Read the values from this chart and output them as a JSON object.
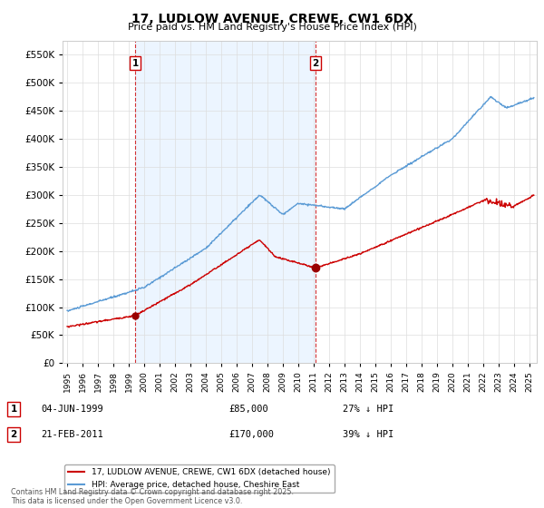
{
  "title": "17, LUDLOW AVENUE, CREWE, CW1 6DX",
  "subtitle": "Price paid vs. HM Land Registry's House Price Index (HPI)",
  "ytick_values": [
    0,
    50000,
    100000,
    150000,
    200000,
    250000,
    300000,
    350000,
    400000,
    450000,
    500000,
    550000
  ],
  "ylim": [
    0,
    575000
  ],
  "xlim_start": 1994.7,
  "xlim_end": 2025.5,
  "marker1_year": 1999.42,
  "marker1_label": "1",
  "marker1_price": 85000,
  "marker1_text": "04-JUN-1999",
  "marker1_hpi": "27% ↓ HPI",
  "marker2_year": 2011.13,
  "marker2_label": "2",
  "marker2_price": 170000,
  "marker2_text": "21-FEB-2011",
  "marker2_hpi": "39% ↓ HPI",
  "hpi_color": "#5b9bd5",
  "price_color": "#cc0000",
  "marker_color": "#990000",
  "vline_color": "#cc0000",
  "shade_color": "#ddeeff",
  "legend_label_price": "17, LUDLOW AVENUE, CREWE, CW1 6DX (detached house)",
  "legend_label_hpi": "HPI: Average price, detached house, Cheshire East",
  "footer": "Contains HM Land Registry data © Crown copyright and database right 2025.\nThis data is licensed under the Open Government Licence v3.0.",
  "background_color": "#ffffff",
  "grid_color": "#dddddd"
}
